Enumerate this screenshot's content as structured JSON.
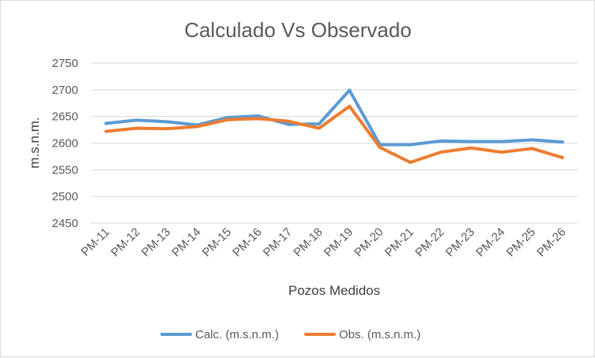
{
  "chart_data": {
    "type": "line",
    "title": "Calculado Vs Observado",
    "xlabel": "Pozos Medidos",
    "ylabel": "m.s.n.m.",
    "ylim": [
      2450,
      2750
    ],
    "yticks": [
      2450,
      2500,
      2550,
      2600,
      2650,
      2700,
      2750
    ],
    "grid": true,
    "legend_position": "bottom",
    "categories": [
      "PM-11",
      "PM-12",
      "PM-13",
      "PM-14",
      "PM-15",
      "PM-16",
      "PM-17",
      "PM-18",
      "PM-19",
      "PM-20",
      "PM-21",
      "PM-22",
      "PM-23",
      "PM-24",
      "PM-25",
      "PM-26"
    ],
    "series": [
      {
        "name": "Calc. (m.s.n.m.)",
        "color": "#5b9bd5",
        "values": [
          2637,
          2643,
          2640,
          2634,
          2648,
          2651,
          2635,
          2636,
          2699,
          2597,
          2597,
          2604,
          2603,
          2603,
          2606,
          2602
        ]
      },
      {
        "name": "Obs. (m.s.n.m.)",
        "color": "#ed7d31",
        "values": [
          2622,
          2628,
          2627,
          2631,
          2644,
          2646,
          2641,
          2628,
          2669,
          2592,
          2564,
          2583,
          2591,
          2583,
          2590,
          2573
        ]
      }
    ]
  }
}
